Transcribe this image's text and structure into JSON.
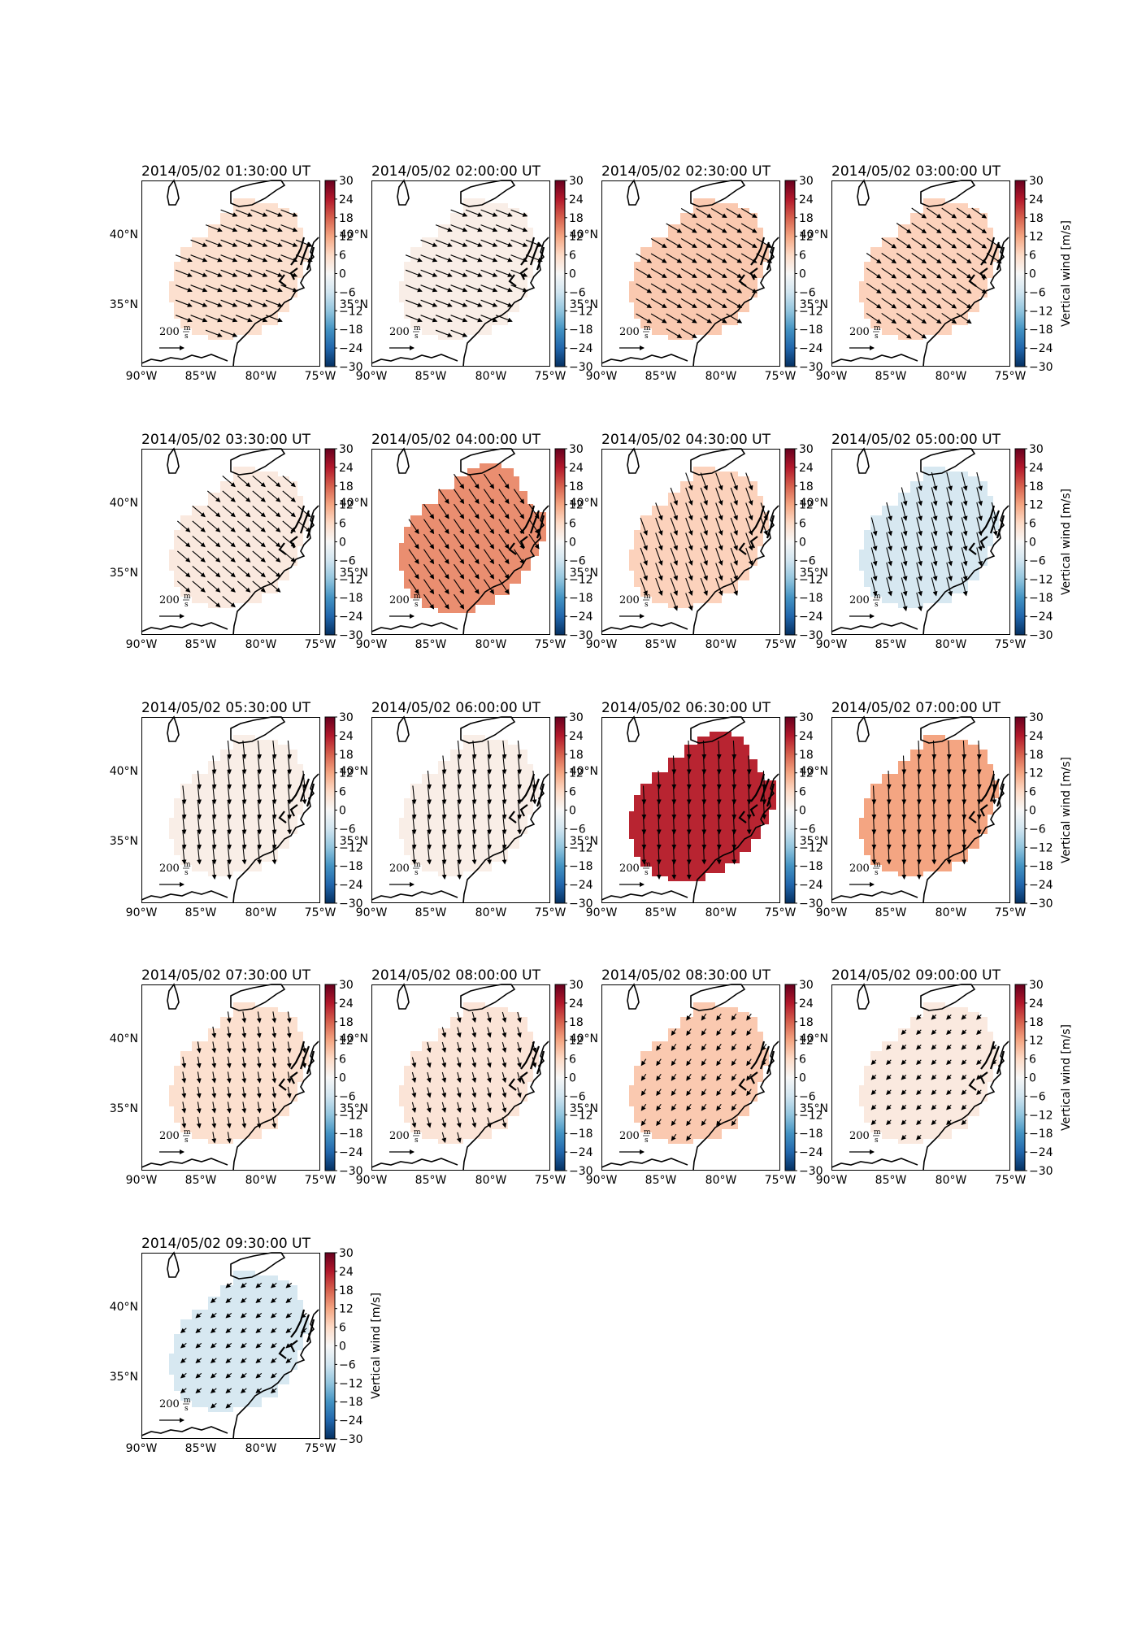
{
  "figure": {
    "colorbar_ticks": [
      "30",
      "24",
      "18",
      "12",
      "6",
      "0",
      "−6",
      "−12",
      "−18",
      "−24",
      "−30"
    ],
    "colorbar_label": "Vertical wind [m/s]",
    "lon_labels": [
      "90°W",
      "85°W",
      "80°W",
      "75°W"
    ],
    "lat_labels": [
      "40°N",
      "35°N"
    ],
    "scale_arrow_label": "200",
    "scale_arrow_unit_num": "m",
    "scale_arrow_unit_den": "s"
  },
  "chart_data": [
    {
      "type": "heatmap",
      "title": "2014/05/02 01:30:00 UT",
      "vertical_wind": 5,
      "wind_u": 0.9,
      "wind_v": -0.35,
      "shape": "A",
      "colorbar_label_visible": false,
      "color_range": [
        -30,
        30
      ],
      "lon_ticks": [
        -90,
        -85,
        -80,
        -75
      ],
      "lat_ticks": [
        40,
        35
      ]
    },
    {
      "type": "heatmap",
      "title": "2014/05/02 02:00:00 UT",
      "vertical_wind": 2,
      "wind_u": 0.9,
      "wind_v": -0.35,
      "shape": "A",
      "colorbar_label_visible": false,
      "color_range": [
        -30,
        30
      ],
      "lon_ticks": [
        -90,
        -85,
        -80,
        -75
      ],
      "lat_ticks": [
        40,
        35
      ]
    },
    {
      "type": "heatmap",
      "title": "2014/05/02 02:30:00 UT",
      "vertical_wind": 8,
      "wind_u": 0.85,
      "wind_v": -0.5,
      "shape": "A",
      "colorbar_label_visible": false,
      "color_range": [
        -30,
        30
      ],
      "lon_ticks": [
        -90,
        -85,
        -80,
        -75
      ],
      "lat_ticks": [
        40,
        35
      ]
    },
    {
      "type": "heatmap",
      "title": "2014/05/02 03:00:00 UT",
      "vertical_wind": 7,
      "wind_u": 0.8,
      "wind_v": -0.55,
      "shape": "A",
      "colorbar_label_visible": true,
      "color_range": [
        -30,
        30
      ],
      "lon_ticks": [
        -90,
        -85,
        -80,
        -75
      ],
      "lat_ticks": [
        40,
        35
      ]
    },
    {
      "type": "heatmap",
      "title": "2014/05/02 03:30:00 UT",
      "vertical_wind": 3,
      "wind_u": 0.7,
      "wind_v": -0.6,
      "shape": "A",
      "colorbar_label_visible": false,
      "color_range": [
        -30,
        30
      ],
      "lon_ticks": [
        -90,
        -85,
        -80,
        -75
      ],
      "lat_ticks": [
        40,
        35
      ]
    },
    {
      "type": "heatmap",
      "title": "2014/05/02 04:00:00 UT",
      "vertical_wind": 14,
      "wind_u": 0.55,
      "wind_v": -0.8,
      "shape": "B",
      "colorbar_label_visible": false,
      "color_range": [
        -30,
        30
      ],
      "lon_ticks": [
        -90,
        -85,
        -80,
        -75
      ],
      "lat_ticks": [
        40,
        35
      ]
    },
    {
      "type": "heatmap",
      "title": "2014/05/02 04:30:00 UT",
      "vertical_wind": 7,
      "wind_u": 0.35,
      "wind_v": -0.95,
      "shape": "A",
      "colorbar_label_visible": false,
      "color_range": [
        -30,
        30
      ],
      "lon_ticks": [
        -90,
        -85,
        -80,
        -75
      ],
      "lat_ticks": [
        40,
        35
      ]
    },
    {
      "type": "heatmap",
      "title": "2014/05/02 05:00:00 UT",
      "vertical_wind": -5,
      "wind_u": 0.25,
      "wind_v": -1.0,
      "shape": "A",
      "colorbar_label_visible": true,
      "color_range": [
        -30,
        30
      ],
      "lon_ticks": [
        -90,
        -85,
        -80,
        -75
      ],
      "lat_ticks": [
        40,
        35
      ]
    },
    {
      "type": "heatmap",
      "title": "2014/05/02 05:30:00 UT",
      "vertical_wind": 2,
      "wind_u": 0.1,
      "wind_v": -1.0,
      "shape": "A",
      "colorbar_label_visible": false,
      "color_range": [
        -30,
        30
      ],
      "lon_ticks": [
        -90,
        -85,
        -80,
        -75
      ],
      "lat_ticks": [
        40,
        35
      ]
    },
    {
      "type": "heatmap",
      "title": "2014/05/02 06:00:00 UT",
      "vertical_wind": 2,
      "wind_u": 0.1,
      "wind_v": -1.0,
      "shape": "A",
      "colorbar_label_visible": false,
      "color_range": [
        -30,
        30
      ],
      "lon_ticks": [
        -90,
        -85,
        -80,
        -75
      ],
      "lat_ticks": [
        40,
        35
      ]
    },
    {
      "type": "heatmap",
      "title": "2014/05/02 06:30:00 UT",
      "vertical_wind": 23,
      "wind_u": 0.05,
      "wind_v": -1.0,
      "shape": "B",
      "colorbar_label_visible": false,
      "color_range": [
        -30,
        30
      ],
      "lon_ticks": [
        -90,
        -85,
        -80,
        -75
      ],
      "lat_ticks": [
        40,
        35
      ]
    },
    {
      "type": "heatmap",
      "title": "2014/05/02 07:00:00 UT",
      "vertical_wind": 12,
      "wind_u": 0.05,
      "wind_v": -1.0,
      "shape": "A",
      "colorbar_label_visible": true,
      "color_range": [
        -30,
        30
      ],
      "lon_ticks": [
        -90,
        -85,
        -80,
        -75
      ],
      "lat_ticks": [
        40,
        35
      ]
    },
    {
      "type": "heatmap",
      "title": "2014/05/02 07:30:00 UT",
      "vertical_wind": 5,
      "wind_u": 0.1,
      "wind_v": -0.6,
      "shape": "A",
      "colorbar_label_visible": false,
      "color_range": [
        -30,
        30
      ],
      "lon_ticks": [
        -90,
        -85,
        -80,
        -75
      ],
      "lat_ticks": [
        40,
        35
      ]
    },
    {
      "type": "heatmap",
      "title": "2014/05/02 08:00:00 UT",
      "vertical_wind": 4,
      "wind_u": 0.15,
      "wind_v": -0.55,
      "shape": "A",
      "colorbar_label_visible": false,
      "color_range": [
        -30,
        30
      ],
      "lon_ticks": [
        -90,
        -85,
        -80,
        -75
      ],
      "lat_ticks": [
        40,
        35
      ]
    },
    {
      "type": "heatmap",
      "title": "2014/05/02 08:30:00 UT",
      "vertical_wind": 8,
      "wind_u": -0.25,
      "wind_v": -0.35,
      "shape": "A",
      "colorbar_label_visible": false,
      "color_range": [
        -30,
        30
      ],
      "lon_ticks": [
        -90,
        -85,
        -80,
        -75
      ],
      "lat_ticks": [
        40,
        35
      ]
    },
    {
      "type": "heatmap",
      "title": "2014/05/02 09:00:00 UT",
      "vertical_wind": 3,
      "wind_u": -0.25,
      "wind_v": -0.25,
      "shape": "A",
      "colorbar_label_visible": true,
      "color_range": [
        -30,
        30
      ],
      "lon_ticks": [
        -90,
        -85,
        -80,
        -75
      ],
      "lat_ticks": [
        40,
        35
      ]
    },
    {
      "type": "heatmap",
      "title": "2014/05/02 09:30:00 UT",
      "vertical_wind": -5,
      "wind_u": -0.3,
      "wind_v": -0.25,
      "shape": "A",
      "colorbar_label_visible": true,
      "color_range": [
        -30,
        30
      ],
      "lon_ticks": [
        -90,
        -85,
        -80,
        -75
      ],
      "lat_ticks": [
        40,
        35
      ]
    }
  ]
}
